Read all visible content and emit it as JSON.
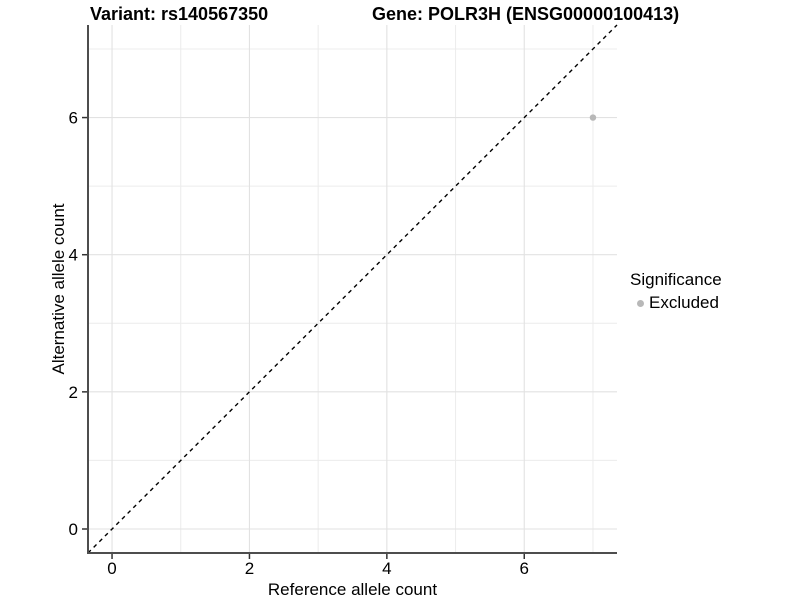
{
  "header": {
    "variant_title": "Variant: rs140567350",
    "gene_title": "Gene: POLR3H (ENSG00000100413)"
  },
  "legend": {
    "title": "Significance",
    "position": "right",
    "items": [
      {
        "label": "Excluded",
        "color": "#b8b8b8"
      }
    ]
  },
  "chart_data": {
    "type": "scatter",
    "title": "Variant: rs140567350 / Gene: POLR3H (ENSG00000100413)",
    "xlabel": "Reference allele count",
    "ylabel": "Alternative allele count",
    "xlim": [
      -0.35,
      7.35
    ],
    "ylim": [
      -0.35,
      7.35
    ],
    "xticks": [
      0,
      2,
      4,
      6
    ],
    "yticks": [
      0,
      2,
      4,
      6
    ],
    "grid_minor": [
      1,
      3,
      5,
      7
    ],
    "grid": true,
    "legend_position": "right",
    "identity_line": {
      "style": "dashed",
      "slope": 1,
      "intercept": 0,
      "color": "#000000"
    },
    "series": [
      {
        "name": "Excluded",
        "color": "#b8b8b8",
        "points": [
          {
            "x": 7,
            "y": 6
          }
        ]
      }
    ]
  },
  "colors": {
    "background": "#ffffff",
    "grid_major": "#e2e2e2",
    "grid_minor": "#ececec",
    "axis_line": "#4d4d4d",
    "tick_mark": "#333333",
    "text": "#000000",
    "point": "#b8b8b8"
  }
}
